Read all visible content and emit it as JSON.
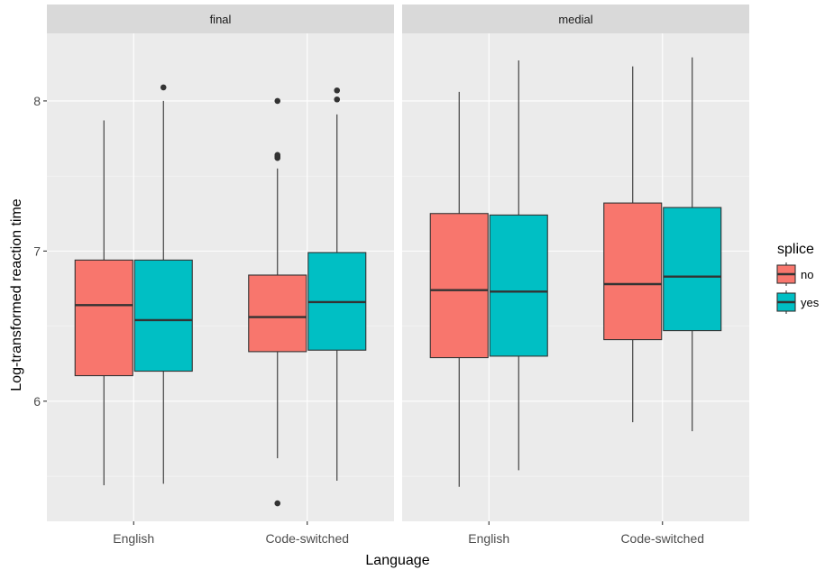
{
  "chart_data": {
    "type": "boxplot",
    "xlabel": "Language",
    "ylabel": "Log-transformed reaction time",
    "ylim": [
      5.2,
      8.45
    ],
    "yticks": [
      6,
      7,
      8
    ],
    "categories": [
      "English",
      "Code-switched"
    ],
    "legend": {
      "title": "splice",
      "position": "right",
      "entries": [
        {
          "name": "no",
          "color": "#F8766D"
        },
        {
          "name": "yes",
          "color": "#00BFC4"
        }
      ]
    },
    "facets": [
      {
        "label": "final",
        "groups": [
          {
            "category": "English",
            "series": "no",
            "whisker_low": 5.44,
            "q1": 6.17,
            "median": 6.64,
            "q3": 6.94,
            "whisker_high": 7.87,
            "outliers": []
          },
          {
            "category": "English",
            "series": "yes",
            "whisker_low": 5.45,
            "q1": 6.2,
            "median": 6.54,
            "q3": 6.94,
            "whisker_high": 8.0,
            "outliers": [
              8.09
            ]
          },
          {
            "category": "Code-switched",
            "series": "no",
            "whisker_low": 5.62,
            "q1": 6.33,
            "median": 6.56,
            "q3": 6.84,
            "whisker_high": 7.55,
            "outliers": [
              5.32,
              7.62,
              7.63,
              7.64,
              8.0
            ]
          },
          {
            "category": "Code-switched",
            "series": "yes",
            "whisker_low": 5.47,
            "q1": 6.34,
            "median": 6.66,
            "q3": 6.99,
            "whisker_high": 7.91,
            "outliers": [
              8.01,
              8.07
            ]
          }
        ]
      },
      {
        "label": "medial",
        "groups": [
          {
            "category": "English",
            "series": "no",
            "whisker_low": 5.43,
            "q1": 6.29,
            "median": 6.74,
            "q3": 7.25,
            "whisker_high": 8.06,
            "outliers": []
          },
          {
            "category": "English",
            "series": "yes",
            "whisker_low": 5.54,
            "q1": 6.3,
            "median": 6.73,
            "q3": 7.24,
            "whisker_high": 8.27,
            "outliers": []
          },
          {
            "category": "Code-switched",
            "series": "no",
            "whisker_low": 5.86,
            "q1": 6.41,
            "median": 6.78,
            "q3": 7.32,
            "whisker_high": 8.23,
            "outliers": []
          },
          {
            "category": "Code-switched",
            "series": "yes",
            "whisker_low": 5.8,
            "q1": 6.47,
            "median": 6.83,
            "q3": 7.29,
            "whisker_high": 8.29,
            "outliers": []
          }
        ]
      }
    ]
  }
}
